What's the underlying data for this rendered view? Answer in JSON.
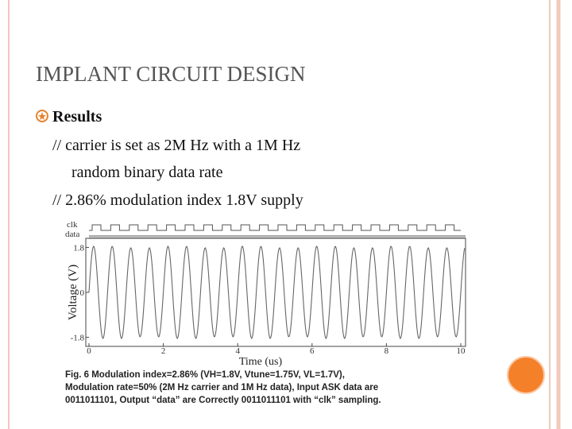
{
  "slide": {
    "title": "IMPLANT  CIRCUIT DESIGN",
    "bullet": "Results",
    "lines": [
      "// carrier is set as 2M Hz with a 1M Hz",
      "random binary data rate",
      "// 2.86% modulation index 1.8V supply"
    ],
    "figure": {
      "signal_labels": [
        "clk",
        "data"
      ],
      "ylabel": "Voltage (V)",
      "xlabel": "Time (us)",
      "xlim": [
        0,
        10
      ],
      "xticks": [
        0,
        2,
        4,
        6,
        8,
        10
      ],
      "ylim": [
        -2.1,
        2.1
      ],
      "yticks": [
        1.8,
        0,
        -1.8
      ],
      "caption": [
        "Fig. 6  Modulation  index=2.86%  (VH=1.8V,  Vtune=1.75V,  VL=1.7V),",
        "Modulation rate=50% (2M Hz carrier and 1M Hz data), Input ASK data are",
        "0011011101, Output “data” are Correctly 0011011101 with “clk” sampling."
      ]
    }
  }
}
